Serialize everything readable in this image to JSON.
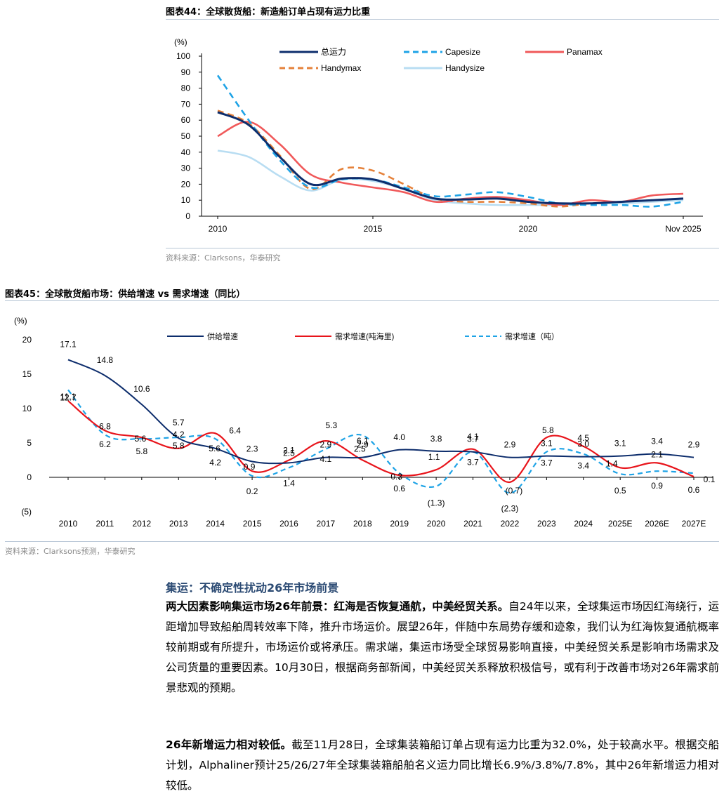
{
  "chart_data": [
    {
      "type": "line",
      "figure_label": "图表44：",
      "title": "全球散货船：新造船订单占现有运力比重",
      "ylabel": "(%)",
      "ylim": [
        0,
        100
      ],
      "yticks": [
        0,
        10,
        20,
        30,
        40,
        50,
        60,
        70,
        80,
        90,
        100
      ],
      "x_tick_labels": [
        "2010",
        "2015",
        "2020",
        "Nov 2025"
      ],
      "x": [
        2010,
        2011,
        2012,
        2013,
        2014,
        2015,
        2016,
        2017,
        2018,
        2019,
        2020,
        2021,
        2022,
        2023,
        2024,
        2025
      ],
      "legend": "top",
      "series": [
        {
          "name": "总运力",
          "color": "#0d2d6c",
          "dash": "solid",
          "values": [
            65,
            57,
            37,
            20,
            23.5,
            23,
            17,
            11,
            10.5,
            11,
            9,
            8,
            8,
            9,
            10,
            11
          ]
        },
        {
          "name": "Capesize",
          "color": "#1ea3e6",
          "dash": "dashed",
          "values": [
            88,
            60,
            35,
            18,
            23,
            23,
            18,
            12.5,
            13.5,
            15,
            12,
            8,
            7,
            7,
            6,
            9
          ]
        },
        {
          "name": "Panamax",
          "color": "#f0595a",
          "dash": "solid",
          "values": [
            50,
            59,
            45,
            26,
            21,
            18,
            15,
            9,
            11,
            12,
            10,
            7,
            10,
            9,
            13,
            14
          ]
        },
        {
          "name": "Handymax",
          "color": "#e5813a",
          "dash": "dashed",
          "values": [
            66,
            58,
            38,
            17,
            29.5,
            28.5,
            20,
            11,
            9,
            9,
            8,
            6,
            8,
            9,
            10,
            11
          ]
        },
        {
          "name": "Handysize",
          "color": "#b8ddf2",
          "dash": "solid",
          "values": [
            41,
            37,
            25,
            16,
            23,
            22,
            17,
            10,
            8,
            7,
            7,
            7,
            8,
            8,
            9,
            10
          ]
        }
      ],
      "source": "资料来源：Clarksons，华泰研究"
    },
    {
      "type": "line",
      "figure_label": "图表45：",
      "title": "全球散货船市场：供给增速 vs 需求增速（同比）",
      "ylabel": "(%)",
      "ylim": [
        -5,
        20
      ],
      "ytick_labels": [
        "(5)",
        "0",
        "5",
        "10",
        "15",
        "20"
      ],
      "ytick_values": [
        -5,
        0,
        5,
        10,
        15,
        20
      ],
      "categories": [
        "2010",
        "2011",
        "2012",
        "2013",
        "2014",
        "2015",
        "2016",
        "2017",
        "2018",
        "2019",
        "2020",
        "2021",
        "2022",
        "2023",
        "2024",
        "2025E",
        "2026E",
        "2027E"
      ],
      "legend": "top",
      "series": [
        {
          "name": "供给增速",
          "color": "#0d2d6c",
          "dash": "solid",
          "values": [
            17.1,
            14.8,
            10.6,
            5.7,
            4.2,
            2.3,
            2.1,
            2.9,
            2.9,
            4.0,
            3.8,
            3.7,
            2.9,
            3.1,
            3.0,
            3.1,
            3.4,
            2.9
          ],
          "labels": [
            "17.1",
            "14.8",
            "10.6",
            "5.7",
            "4.2",
            "2.3",
            "2.1",
            "2.9",
            "2.9",
            "4.0",
            "3.8",
            "3.7",
            "2.9",
            "3.1",
            "3.0",
            "3.1",
            "3.4",
            "2.9"
          ]
        },
        {
          "name": "需求增速(吨海里)",
          "color": "#e8141b",
          "dash": "solid",
          "values": [
            11.1,
            6.8,
            5.8,
            4.2,
            6.4,
            0.9,
            2.5,
            5.3,
            2.5,
            0.3,
            1.1,
            4.1,
            -0.7,
            5.8,
            4.5,
            1.4,
            2.1,
            0.1
          ],
          "labels": [
            "11.1",
            "6.8",
            "5.8",
            "4.2",
            "6.4",
            "0.9",
            "2.5",
            "5.3",
            "2.5",
            "0.3",
            "1.1",
            "4.1",
            "(0.7)",
            "5.8",
            "4.5",
            "1.4",
            "2.1",
            "0.1"
          ]
        },
        {
          "name": "需求增速（吨）",
          "color": "#1ea3e6",
          "dash": "dashed",
          "values": [
            12.7,
            6.2,
            5.6,
            5.8,
            5.6,
            0.2,
            1.4,
            4.1,
            6.1,
            0.6,
            -1.3,
            3.7,
            -2.3,
            3.7,
            3.4,
            0.5,
            0.9,
            0.6
          ],
          "labels": [
            "12.7",
            "6.2",
            "5.6",
            "5.8",
            "5.6",
            "0.2",
            "1.4",
            "4.1",
            "6.1",
            "0.6",
            "(1.3)",
            "3.7",
            "(2.3)",
            "3.7",
            "3.4",
            "0.5",
            "0.9",
            "0.6"
          ]
        }
      ],
      "source": "资料来源：Clarksons预测，华泰研究"
    }
  ],
  "article": {
    "section_title": "集运：不确定性扰动26年市场前景",
    "para1_bold": "两大因素影响集运市场26年前景：红海是否恢复通航，中美经贸关系。",
    "para1_text": "自24年以来，全球集运市场因红海绕行，运距增加导致船舶周转效率下降，推升市场运价。展望26年，伴随中东局势存缓和迹象，我们认为红海恢复通航概率较前期或有所提升，市场运价或将承压。需求端，集运市场受全球贸易影响直接，中美经贸关系是影响市场需求及公司货量的重要因素。10月30日，根据商务部新闻，中美经贸关系释放积极信号，或有利于改善市场对26年需求前景悲观的预期。",
    "para2_bold": "26年新增运力相对较低。",
    "para2_text": "截至11月28日，全球集装箱船订单占现有运力比重为32.0%，处于较高水平。根据交船计划，Alphaliner预计25/26/27年全球集装箱船舶名义运力同比增长6.9%/3.8%/7.8%，其中26年新增运力相对较低。"
  }
}
